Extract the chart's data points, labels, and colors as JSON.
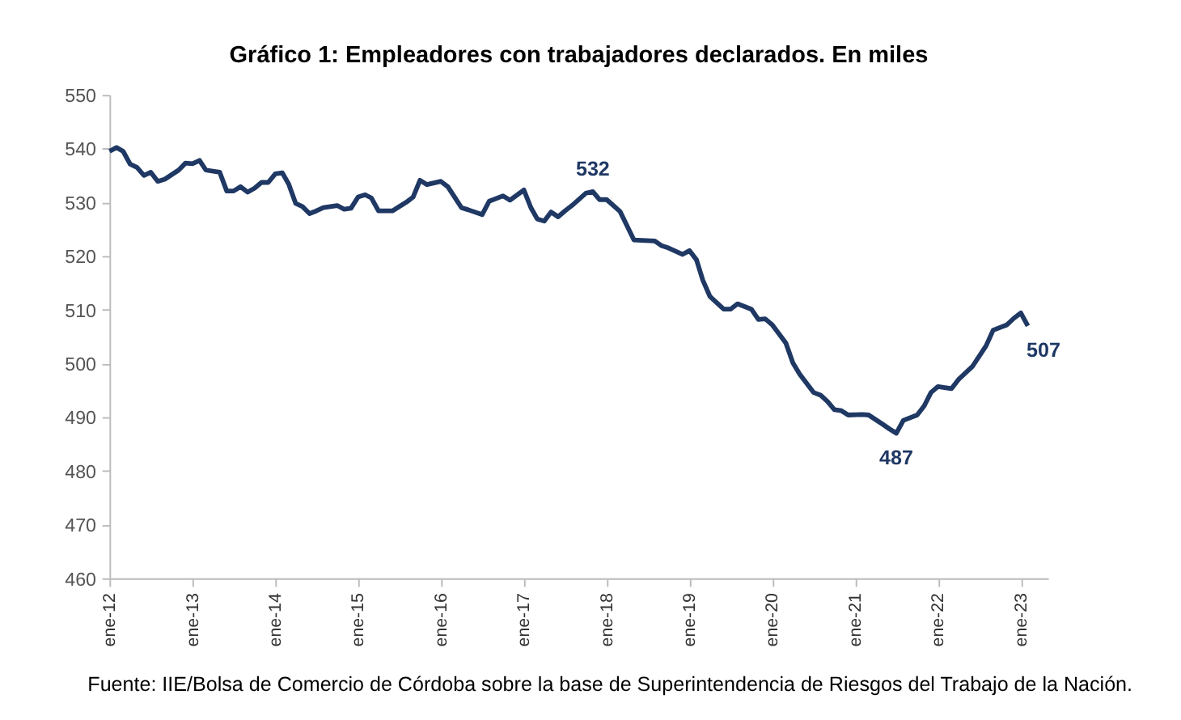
{
  "chart_data": {
    "type": "line",
    "title": "Gráfico 1: Empleadores con trabajadores declarados. En miles",
    "x": [
      "2012-01",
      "2012-02",
      "2012-03",
      "2012-04",
      "2012-05",
      "2012-06",
      "2012-07",
      "2012-08",
      "2012-09",
      "2012-11",
      "2012-12",
      "2013-01",
      "2013-02",
      "2013-03",
      "2013-05",
      "2013-06",
      "2013-07",
      "2013-08",
      "2013-09",
      "2013-10",
      "2013-11",
      "2013-12",
      "2014-01",
      "2014-02",
      "2014-03",
      "2014-04",
      "2014-05",
      "2014-06",
      "2014-07",
      "2014-08",
      "2014-10",
      "2014-11",
      "2014-12",
      "2015-01",
      "2015-02",
      "2015-03",
      "2015-04",
      "2015-06",
      "2015-08",
      "2015-09",
      "2015-10",
      "2015-11",
      "2016-01",
      "2016-02",
      "2016-03",
      "2016-04",
      "2016-05",
      "2016-07",
      "2016-08",
      "2016-10",
      "2016-11",
      "2017-01",
      "2017-02",
      "2017-03",
      "2017-04",
      "2017-05",
      "2017-06",
      "2017-07",
      "2017-08",
      "2017-10",
      "2017-11",
      "2017-12",
      "2018-01",
      "2018-03",
      "2018-04",
      "2018-05",
      "2018-08",
      "2018-09",
      "2018-10",
      "2018-12",
      "2019-01",
      "2019-02",
      "2019-03",
      "2019-04",
      "2019-06",
      "2019-07",
      "2019-08",
      "2019-10",
      "2019-11",
      "2019-12",
      "2020-01",
      "2020-03",
      "2020-04",
      "2020-05",
      "2020-07",
      "2020-08",
      "2020-09",
      "2020-10",
      "2020-11",
      "2020-12",
      "2021-02",
      "2021-03",
      "2021-05",
      "2021-06",
      "2021-07",
      "2021-08",
      "2021-10",
      "2021-11",
      "2021-12",
      "2022-01",
      "2022-03",
      "2022-04",
      "2022-06",
      "2022-08",
      "2022-09",
      "2022-11",
      "2022-12",
      "2023-01",
      "2023-02"
    ],
    "series": [
      {
        "color": "#1f3864",
        "values": [
          539.5,
          540.2,
          539.5,
          537.1,
          536.5,
          535,
          535.6,
          533.9,
          534.3,
          536,
          537.3,
          537.2,
          537.8,
          536,
          535.6,
          532.1,
          532.1,
          532.9,
          531.9,
          532.6,
          533.7,
          533.7,
          535.3,
          535.5,
          533.4,
          529.8,
          529.2,
          527.9,
          528.4,
          529,
          529.4,
          528.7,
          528.9,
          531,
          531.4,
          530.8,
          528.4,
          528.4,
          530,
          531,
          534.1,
          533.3,
          533.9,
          532.9,
          531,
          529,
          528.6,
          527.7,
          530.2,
          531.2,
          530.4,
          532.3,
          529,
          526.9,
          526.5,
          528.2,
          527.3,
          528.4,
          529.4,
          531.7,
          532,
          530.5,
          530.5,
          528.3,
          525.6,
          523,
          522.8,
          521.9,
          521.5,
          520.3,
          521,
          519.3,
          515.5,
          512.5,
          510.1,
          510.1,
          511.1,
          510.1,
          508.2,
          508.3,
          507.2,
          503.8,
          500.1,
          498,
          494.6,
          494.1,
          492.9,
          491.4,
          491.2,
          490.4,
          490.5,
          490.4,
          488.7,
          487.8,
          487,
          489.4,
          490.4,
          492.1,
          494.6,
          495.7,
          495.3,
          497,
          499.4,
          503.3,
          506.2,
          507.2,
          508.4,
          509.4,
          507
        ]
      }
    ],
    "xlim": [
      "2012-01",
      "2023-05"
    ],
    "xticks": [
      {
        "value": "2012-01",
        "label": "ene-12"
      },
      {
        "value": "2013-01",
        "label": "ene-13"
      },
      {
        "value": "2014-01",
        "label": "ene-14"
      },
      {
        "value": "2015-01",
        "label": "ene-15"
      },
      {
        "value": "2016-01",
        "label": "ene-16"
      },
      {
        "value": "2017-01",
        "label": "ene-17"
      },
      {
        "value": "2018-01",
        "label": "ene-18"
      },
      {
        "value": "2019-01",
        "label": "ene-19"
      },
      {
        "value": "2020-01",
        "label": "ene-20"
      },
      {
        "value": "2021-01",
        "label": "ene-21"
      },
      {
        "value": "2022-01",
        "label": "ene-22"
      },
      {
        "value": "2023-01",
        "label": "ene-23"
      }
    ],
    "ylim": [
      460,
      550
    ],
    "yticks": [
      460,
      470,
      480,
      490,
      500,
      510,
      520,
      530,
      540,
      550
    ],
    "grid": false,
    "marker": "none",
    "line_style": "solid",
    "annotations": [
      {
        "text": "532",
        "x": "2017-11",
        "y": 532
      },
      {
        "text": "487",
        "x": "2021-07",
        "y": 487
      },
      {
        "text": "507",
        "x": "2023-02",
        "y": 507
      },
      "Fuente: IIE/Bolsa de Comercio de Córdoba sobre la base de Superintendencia de Riesgos del Trabajo de la Nación."
    ]
  }
}
